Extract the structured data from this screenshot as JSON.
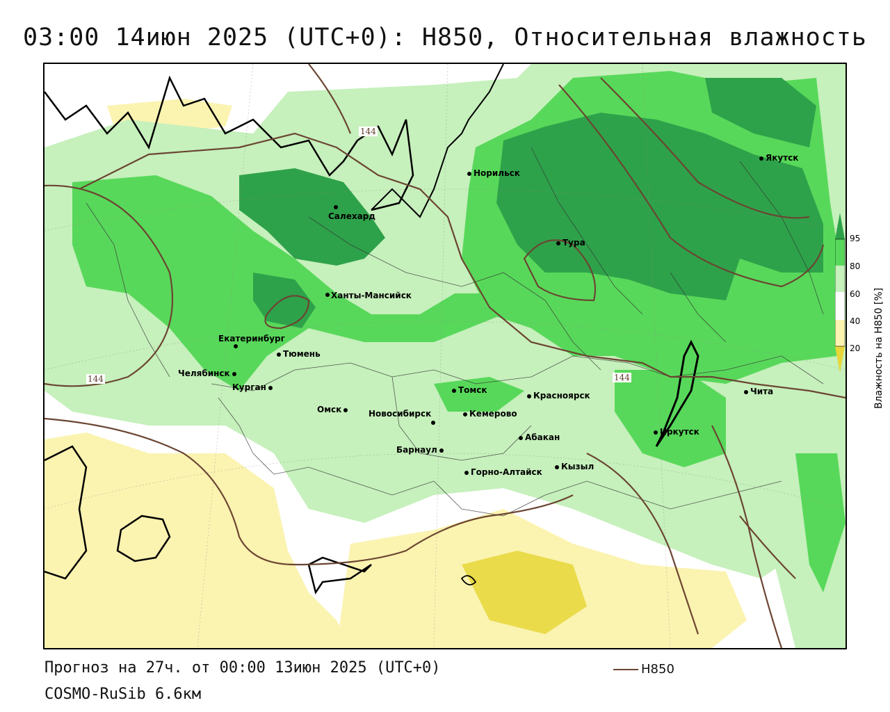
{
  "title": "03:00 14июн 2025 (UTC+0): H850, Относительная влажность",
  "footer": {
    "forecast": "Прогноз на 27ч. от 00:00 13июн 2025 (UTC+0)",
    "model": "COSMO-RuSib 6.6км",
    "legend_label": "H850"
  },
  "colorbar": {
    "title": "Влажность на H850 [%]",
    "ticks": [
      "95",
      "80",
      "60",
      "40",
      "20"
    ],
    "colors": [
      "#2ea24a",
      "#58d85a",
      "#c6f0bc",
      "#ffffff",
      "#fbf3b0",
      "#e6d63a"
    ]
  },
  "contour_labels": [
    "144",
    "144",
    "144"
  ],
  "cities": [
    {
      "name": "Норильск"
    },
    {
      "name": "Якутск"
    },
    {
      "name": "Салехард"
    },
    {
      "name": "Тура"
    },
    {
      "name": "Ханты-Мансийск"
    },
    {
      "name": "Екатеринбург"
    },
    {
      "name": "Тюмень"
    },
    {
      "name": "Челябинск"
    },
    {
      "name": "Курган"
    },
    {
      "name": "Омск"
    },
    {
      "name": "Новосибирск"
    },
    {
      "name": "Томск"
    },
    {
      "name": "Кемерово"
    },
    {
      "name": "Красноярск"
    },
    {
      "name": "Абакан"
    },
    {
      "name": "Барнаул"
    },
    {
      "name": "Горно-Алтайск"
    },
    {
      "name": "Кызыл"
    },
    {
      "name": "Иркутск"
    },
    {
      "name": "Чита"
    }
  ]
}
